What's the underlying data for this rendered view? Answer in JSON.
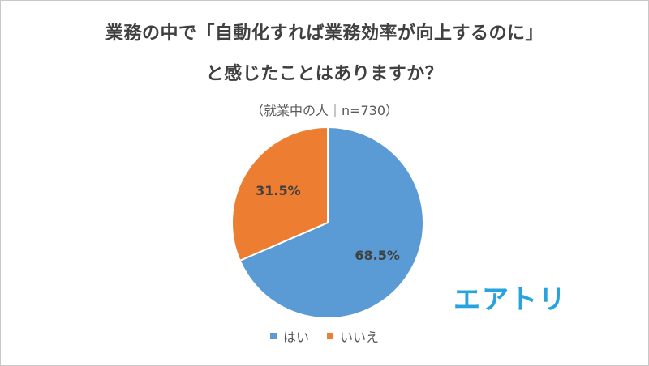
{
  "header": {
    "title_line1": "業務の中で「自動化すれば業務効率が向上するのに」",
    "title_line2": "と感じたことはありますか？",
    "subtitle": "（就業中の人｜n=730）"
  },
  "chart_data": {
    "type": "pie",
    "categories": [
      "はい",
      "いいえ"
    ],
    "values": [
      68.5,
      31.5
    ],
    "labels": [
      "68.5%",
      "31.5%"
    ],
    "colors": [
      "#5b9bd5",
      "#ed7d31"
    ],
    "start": "12 o'clock, clockwise",
    "legend_position": "bottom"
  },
  "legend": {
    "items": [
      {
        "label": "はい",
        "color": "#5b9bd5"
      },
      {
        "label": "いいえ",
        "color": "#ed7d31"
      }
    ]
  },
  "logo": {
    "text": "エアトリ",
    "color": "#29a3de"
  }
}
